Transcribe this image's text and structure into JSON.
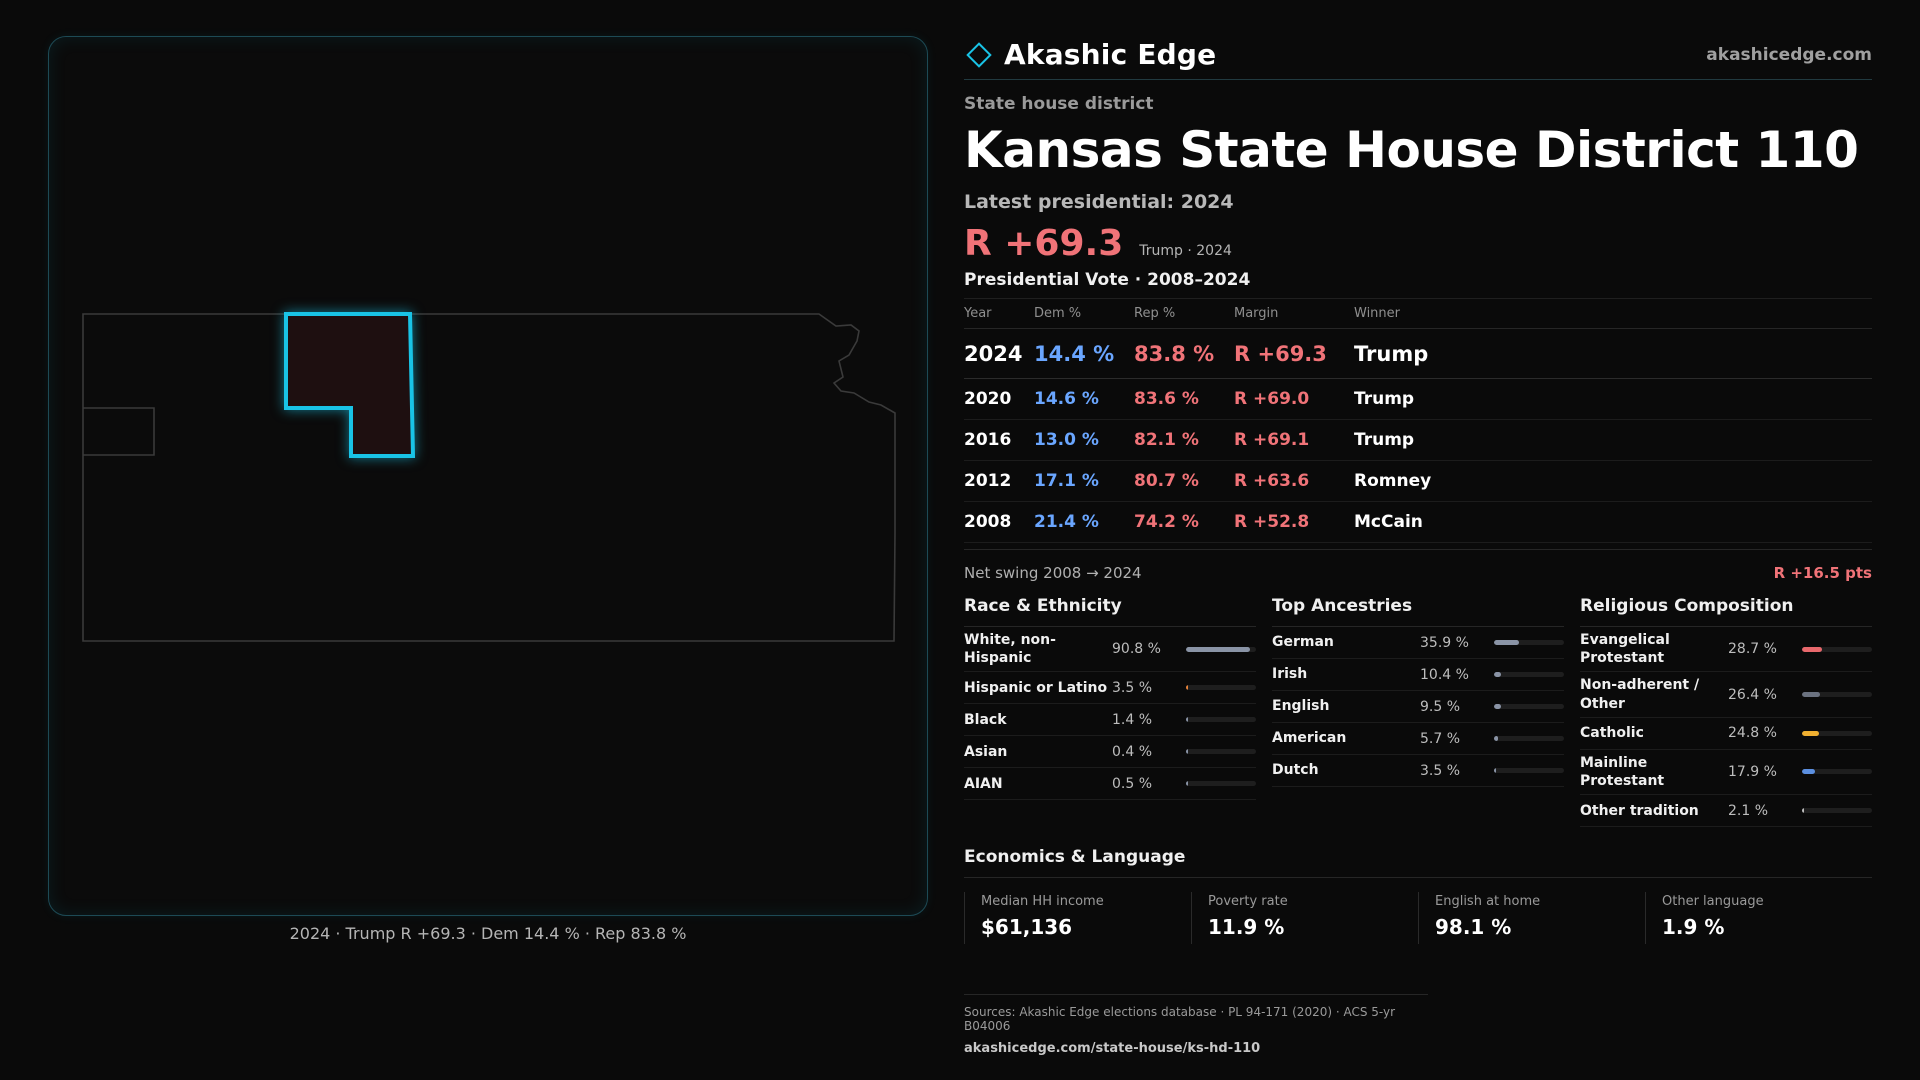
{
  "header": {
    "brand": "Akashic Edge",
    "brand_icon": "diamond-outline-icon",
    "site": "akashicedge.com"
  },
  "district": {
    "kicker": "State house district",
    "title": "Kansas State House District 110",
    "latest": "Latest presidential: 2024",
    "margin": "R +69.3",
    "margin_sub": "Trump · 2024"
  },
  "presidential": {
    "title": "Presidential Vote · 2008–2024",
    "columns": [
      "Year",
      "Dem %",
      "Rep %",
      "Margin",
      "Winner"
    ],
    "rows": [
      {
        "year": "2024",
        "dem": "14.4 %",
        "rep": "83.8 %",
        "margin": "R +69.3",
        "winner": "Trump"
      },
      {
        "year": "2020",
        "dem": "14.6 %",
        "rep": "83.6 %",
        "margin": "R +69.0",
        "winner": "Trump"
      },
      {
        "year": "2016",
        "dem": "13.0 %",
        "rep": "82.1 %",
        "margin": "R +69.1",
        "winner": "Trump"
      },
      {
        "year": "2012",
        "dem": "17.1 %",
        "rep": "80.7 %",
        "margin": "R +63.6",
        "winner": "Romney"
      },
      {
        "year": "2008",
        "dem": "21.4 %",
        "rep": "74.2 %",
        "margin": "R +52.8",
        "winner": "McCain"
      }
    ],
    "swing_label": "Net swing 2008 → 2024",
    "swing_value": "R +16.5 pts"
  },
  "race": {
    "title": "Race & Ethnicity",
    "items": [
      {
        "label": "White, non-Hispanic",
        "value": "90.8 %",
        "pct": 90.8,
        "color": "#8a94a6"
      },
      {
        "label": "Hispanic or Latino",
        "value": "3.5 %",
        "pct": 3.5,
        "color": "#e8833a"
      },
      {
        "label": "Black",
        "value": "1.4 %",
        "pct": 1.4,
        "color": "#8a94a6"
      },
      {
        "label": "Asian",
        "value": "0.4 %",
        "pct": 0.4,
        "color": "#8a94a6"
      },
      {
        "label": "AIAN",
        "value": "0.5 %",
        "pct": 0.5,
        "color": "#8a94a6"
      }
    ]
  },
  "ancestry": {
    "title": "Top Ancestries",
    "items": [
      {
        "label": "German",
        "value": "35.9 %",
        "pct": 35.9,
        "color": "#8a94a6"
      },
      {
        "label": "Irish",
        "value": "10.4 %",
        "pct": 10.4,
        "color": "#8a94a6"
      },
      {
        "label": "English",
        "value": "9.5 %",
        "pct": 9.5,
        "color": "#8a94a6"
      },
      {
        "label": "American",
        "value": "5.7 %",
        "pct": 5.7,
        "color": "#8a94a6"
      },
      {
        "label": "Dutch",
        "value": "3.5 %",
        "pct": 3.5,
        "color": "#8a94a6"
      }
    ]
  },
  "religion": {
    "title": "Religious Composition",
    "items": [
      {
        "label": "Evangelical Protestant",
        "value": "28.7 %",
        "pct": 28.7,
        "color": "#e8686c"
      },
      {
        "label": "Non-adherent / Other",
        "value": "26.4 %",
        "pct": 26.4,
        "color": "#6b7280"
      },
      {
        "label": "Catholic",
        "value": "24.8 %",
        "pct": 24.8,
        "color": "#f0b030"
      },
      {
        "label": "Mainline Protestant",
        "value": "17.9 %",
        "pct": 17.9,
        "color": "#5b8fe0"
      },
      {
        "label": "Other tradition",
        "value": "2.1 %",
        "pct": 2.1,
        "color": "#bdbdbd"
      }
    ]
  },
  "economics": {
    "title": "Economics & Language",
    "items": [
      {
        "label": "Median HH income",
        "value": "$61,136"
      },
      {
        "label": "Poverty rate",
        "value": "11.9 %"
      },
      {
        "label": "English at home",
        "value": "98.1 %"
      },
      {
        "label": "Other language",
        "value": "1.9 %"
      }
    ]
  },
  "map": {
    "caption": "2024 · Trump R +69.3 · Dem 14.4 % · Rep 83.8 %",
    "highlight_color": "#19c3e6",
    "fill_color": "#1e0f10"
  },
  "sources": {
    "line1": "Sources: Akashic Edge elections database · PL 94-171 (2020) · ACS 5-yr B04006",
    "line2": "akashicedge.com/state-house/ks-hd-110"
  }
}
